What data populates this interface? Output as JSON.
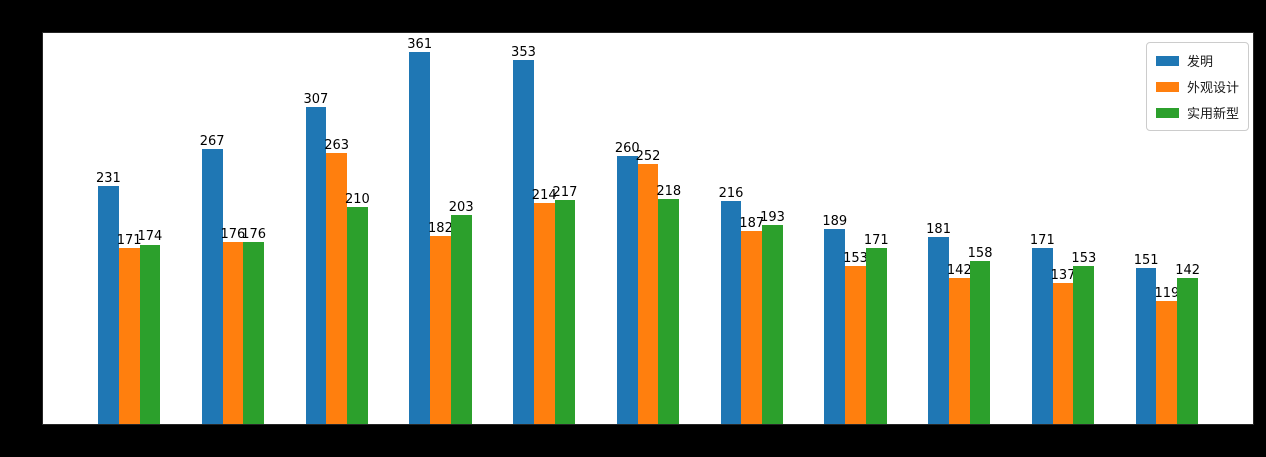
{
  "figure": {
    "background_color": "#000000",
    "plot_background_color": "#ffffff"
  },
  "chart_data": {
    "type": "bar",
    "title": "",
    "xlabel": "",
    "ylabel": "",
    "group_count": 11,
    "series": [
      {
        "name": "发明",
        "color": "#1f77b4",
        "values": [
          231,
          267,
          307,
          361,
          353,
          260,
          216,
          189,
          181,
          171,
          151
        ]
      },
      {
        "name": "外观设计",
        "color": "#ff7f0e",
        "values": [
          171,
          176,
          263,
          182,
          214,
          252,
          187,
          153,
          142,
          137,
          119
        ]
      },
      {
        "name": "实用新型",
        "color": "#2ca02c",
        "values": [
          174,
          176,
          210,
          203,
          217,
          218,
          193,
          171,
          158,
          153,
          142
        ]
      }
    ],
    "bar_width": 0.2,
    "bar_offsets": [
      -0.2,
      0,
      0.2
    ],
    "xlim": [
      -0.83,
      10.83
    ],
    "ylim": [
      0,
      379
    ],
    "grid": false,
    "value_labels": true,
    "legend_position": "upper right",
    "x_tick_labels_visible": false,
    "y_tick_labels_visible": false
  }
}
